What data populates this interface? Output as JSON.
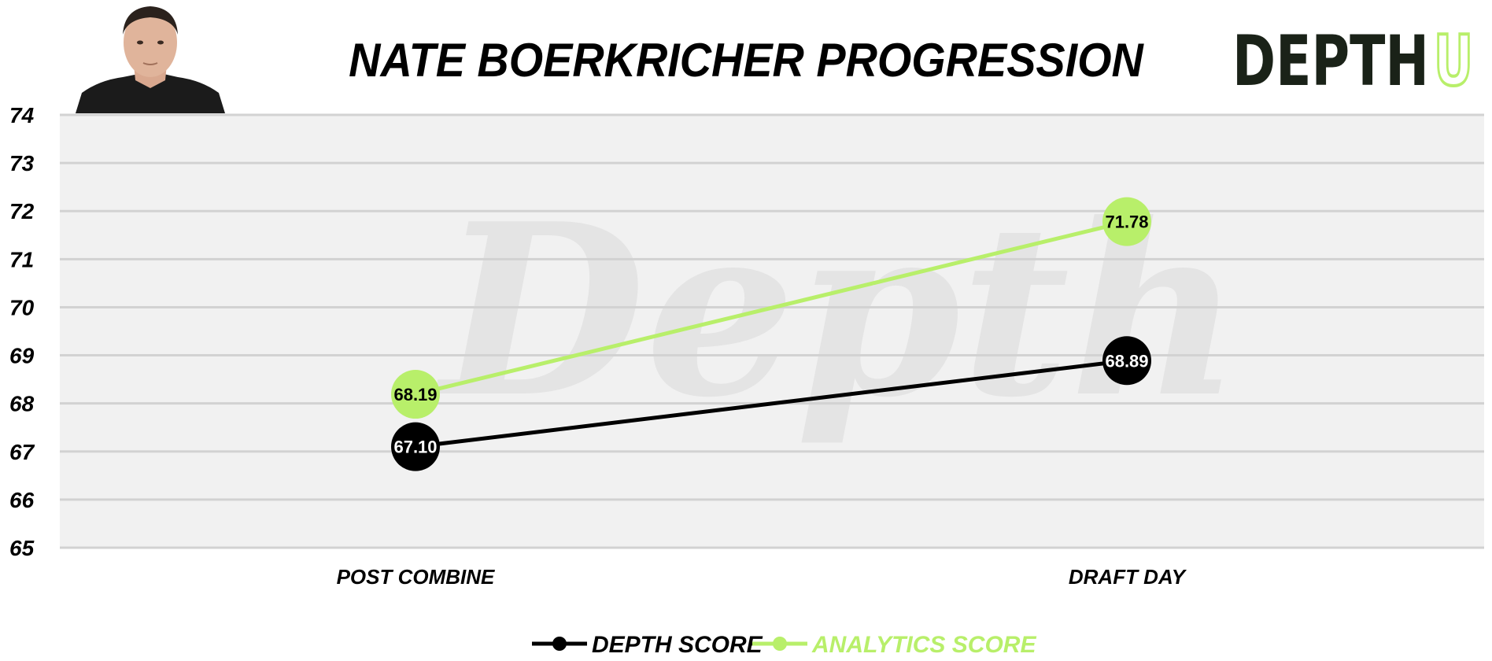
{
  "header": {
    "title": "NATE BOERKRICHER PROGRESSION",
    "brand_logo_text": "DEPTHU",
    "watermark_text": "Depth"
  },
  "colors": {
    "depth": "#000000",
    "analytics": "#b8ef6a",
    "plot_background": "#f1f1f1",
    "gridline": "#d2d2d2"
  },
  "chart_data": {
    "type": "line",
    "title": "NATE BOERKRICHER PROGRESSION",
    "categories": [
      "POST COMBINE",
      "DRAFT DAY"
    ],
    "series": [
      {
        "name": "DEPTH SCORE",
        "values": [
          67.1,
          68.89
        ],
        "labels": [
          "67.10",
          "68.89"
        ],
        "color": "#000000"
      },
      {
        "name": "ANALYTICS SCORE",
        "values": [
          68.19,
          71.78
        ],
        "labels": [
          "68.19",
          "71.78"
        ],
        "color": "#b8ef6a"
      }
    ],
    "y_ticks": [
      "74",
      "73",
      "72",
      "71",
      "70",
      "69",
      "68",
      "67",
      "66",
      "65"
    ],
    "ylim": [
      65,
      74
    ],
    "grid": true,
    "legend_position": "bottom-center"
  }
}
